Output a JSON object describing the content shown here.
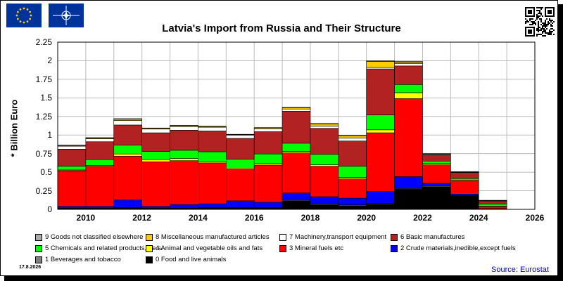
{
  "chart_data": {
    "type": "bar",
    "stacked": true,
    "title": "Latvia's Import from Russia and Their Structure",
    "ylabel": "* Billion Euro",
    "xlabel": "",
    "ylim": [
      0,
      2.25
    ],
    "yticks": [
      "2.25",
      "2",
      "1.75",
      "1.5",
      "1.25",
      "1",
      "0.75",
      "0.5",
      "0.25",
      "0"
    ],
    "xtick_labels": [
      "2010",
      "2012",
      "2014",
      "2016",
      "2018",
      "2020",
      "2022",
      "2024",
      "2026"
    ],
    "categories": [
      "2010",
      "2011",
      "2012",
      "2013",
      "2014",
      "2015",
      "2016",
      "2017",
      "2018",
      "2019",
      "2020",
      "2021",
      "2022",
      "2023",
      "2024",
      "2025",
      "2026"
    ],
    "grid": true,
    "series": [
      {
        "name": "0 Food and live animals",
        "color": "#000000",
        "values": [
          0.01,
          0.01,
          0.02,
          0.01,
          0.01,
          0.02,
          0.02,
          0.02,
          0.11,
          0.06,
          0.05,
          0.07,
          0.27,
          0.3,
          0.18,
          0.005,
          0
        ]
      },
      {
        "name": "1 Beverages and tobacco",
        "color": "#808080",
        "values": [
          0.005,
          0.005,
          0.005,
          0.005,
          0.005,
          0.005,
          0.005,
          0.005,
          0.01,
          0.01,
          0.01,
          0.01,
          0.01,
          0.01,
          0.005,
          0.002,
          0
        ]
      },
      {
        "name": "2 Crude materials,inedible,except fuels",
        "color": "#0000ff",
        "values": [
          0.025,
          0.025,
          0.1,
          0.025,
          0.05,
          0.05,
          0.09,
          0.07,
          0.1,
          0.1,
          0.09,
          0.16,
          0.16,
          0.04,
          0.02,
          0.003,
          0
        ]
      },
      {
        "name": "3 Mineral fuels etc",
        "color": "#ff0000",
        "values": [
          0.48,
          0.54,
          0.59,
          0.6,
          0.59,
          0.55,
          0.42,
          0.5,
          0.54,
          0.41,
          0.26,
          0.79,
          1.05,
          0.25,
          0.18,
          0.03,
          0
        ]
      },
      {
        "name": "4 Animal and vegetable oils and fats",
        "color": "#ffff00",
        "values": [
          0.01,
          0.01,
          0.03,
          0.03,
          0.03,
          0.02,
          0.02,
          0.02,
          0.02,
          0.02,
          0.02,
          0.04,
          0.08,
          0.02,
          0.01,
          0.002,
          0
        ]
      },
      {
        "name": "5 Chemicals and related products,n.e.s.",
        "color": "#00ff00",
        "values": [
          0.05,
          0.08,
          0.12,
          0.11,
          0.11,
          0.13,
          0.12,
          0.13,
          0.11,
          0.14,
          0.15,
          0.2,
          0.11,
          0.03,
          0.02,
          0.03,
          0
        ]
      },
      {
        "name": "6 Basic manufactures",
        "color": "#b22222",
        "values": [
          0.23,
          0.24,
          0.27,
          0.25,
          0.27,
          0.28,
          0.28,
          0.3,
          0.43,
          0.35,
          0.34,
          0.62,
          0.25,
          0.08,
          0.08,
          0.04,
          0
        ]
      },
      {
        "name": "7 Machinery,transport equipment",
        "color": "#ffffff",
        "values": [
          0.04,
          0.04,
          0.06,
          0.05,
          0.05,
          0.05,
          0.04,
          0.04,
          0.03,
          0.03,
          0.04,
          0.02,
          0.03,
          0.01,
          0.005,
          0.005,
          0
        ]
      },
      {
        "name": "8 Miscellaneous manufactured articles",
        "color": "#ffcc00",
        "values": [
          0.01,
          0.01,
          0.02,
          0.01,
          0.01,
          0.01,
          0.01,
          0.01,
          0.02,
          0.03,
          0.03,
          0.08,
          0.02,
          0.005,
          0.004,
          0.003,
          0
        ]
      },
      {
        "name": "9 Goods not classified elsewhere",
        "color": "#a9a9a9",
        "values": [
          0.005,
          0.005,
          0.005,
          0.005,
          0.005,
          0.005,
          0.005,
          0.005,
          0.005,
          0.005,
          0.005,
          0.01,
          0.01,
          0.005,
          0.003,
          0.002,
          0
        ]
      }
    ],
    "legend_position": "bottom"
  },
  "legend_rows": [
    [
      {
        "label": "9 Goods not classified elsewhere",
        "color": "#a9a9a9"
      },
      {
        "label": "8 Miscellaneous manufactured articles",
        "color": "#ffcc00"
      },
      {
        "label": "7 Machinery,transport equipment",
        "color": "#ffffff"
      },
      {
        "label": "6 Basic manufactures",
        "color": "#b22222"
      }
    ],
    [
      {
        "label": "5 Chemicals and related products,n.e.s.",
        "color": "#00ff00"
      },
      {
        "label": "4 Animal and vegetable oils and fats",
        "color": "#ffff00"
      },
      {
        "label": "3 Mineral fuels etc",
        "color": "#ff0000"
      },
      {
        "label": "2 Crude materials,inedible,except fuels",
        "color": "#0000ff"
      }
    ],
    [
      {
        "label": "1 Beverages and tobacco",
        "color": "#808080"
      },
      {
        "label": "0 Food and live animals",
        "color": "#000000"
      }
    ]
  ],
  "date_text": "17.8.2026",
  "source_text": "Source: Eurostat",
  "icons": {
    "eu_flag": "eu-flag-icon",
    "nato_flag": "nato-flag-icon",
    "qr": "qr-code-icon"
  },
  "colors": {
    "plot_background": "#ffffff",
    "grid": "#bbbbbb",
    "flag_blue": "#003399",
    "source": "#0000cc"
  }
}
